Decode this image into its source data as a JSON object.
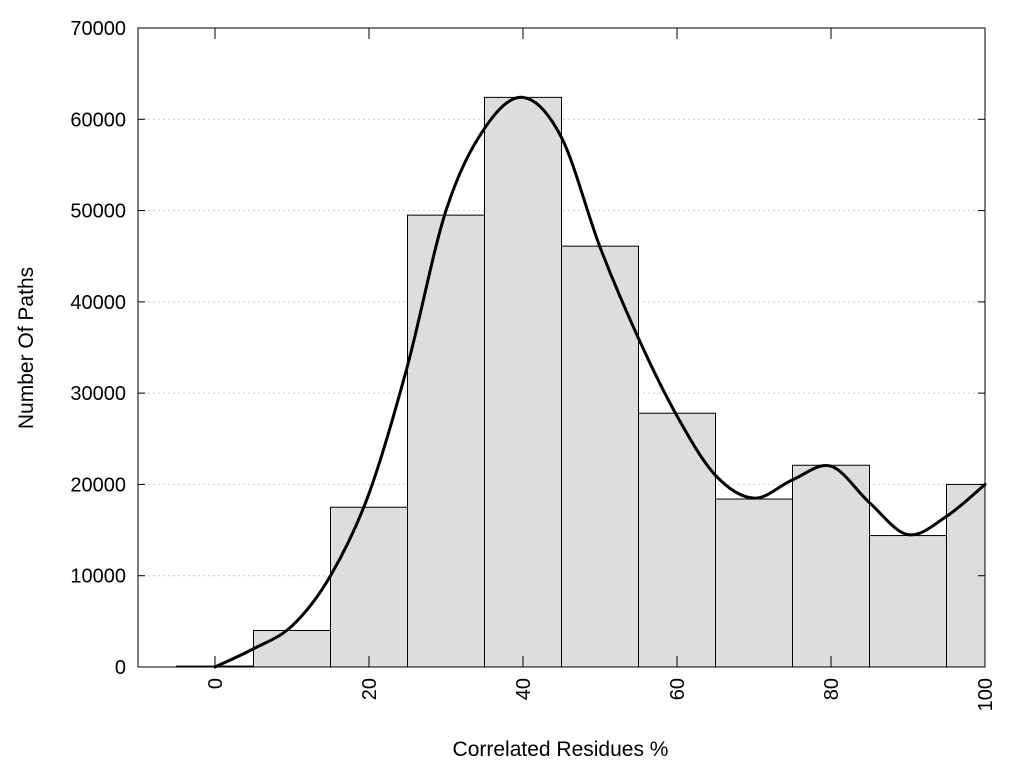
{
  "chart_data": {
    "type": "bar",
    "xlabel": "Correlated Residues %",
    "ylabel": "Number Of Paths",
    "x_range": [
      -10,
      100
    ],
    "ylim": [
      0,
      70000
    ],
    "bin_width": 10,
    "x_ticks": [
      0,
      20,
      40,
      60,
      80,
      100
    ],
    "y_ticks": [
      0,
      10000,
      20000,
      30000,
      40000,
      50000,
      60000,
      70000
    ],
    "grid": "horizontal dotted",
    "bins": [
      {
        "center": 0,
        "value": 100
      },
      {
        "center": 10,
        "value": 4000
      },
      {
        "center": 20,
        "value": 17500
      },
      {
        "center": 30,
        "value": 49500
      },
      {
        "center": 40,
        "value": 62400
      },
      {
        "center": 50,
        "value": 46100
      },
      {
        "center": 60,
        "value": 27800
      },
      {
        "center": 70,
        "value": 18400
      },
      {
        "center": 80,
        "value": 22100
      },
      {
        "center": 90,
        "value": 14400
      },
      {
        "center": 100,
        "value": 20000
      }
    ],
    "density_curve": {
      "x": [
        0,
        5,
        10,
        15,
        20,
        25,
        30,
        35,
        40,
        45,
        50,
        55,
        60,
        65,
        70,
        75,
        80,
        85,
        90,
        95,
        100
      ],
      "y": [
        0,
        2000,
        4500,
        10000,
        19000,
        33000,
        50000,
        59000,
        62400,
        58000,
        46000,
        36000,
        27500,
        21000,
        18500,
        20500,
        22000,
        18000,
        14500,
        16500,
        20000
      ]
    },
    "colors": {
      "bar_fill": "#dddddd",
      "bar_stroke": "#000000",
      "curve": "#000000",
      "grid": "#cccccc"
    }
  }
}
